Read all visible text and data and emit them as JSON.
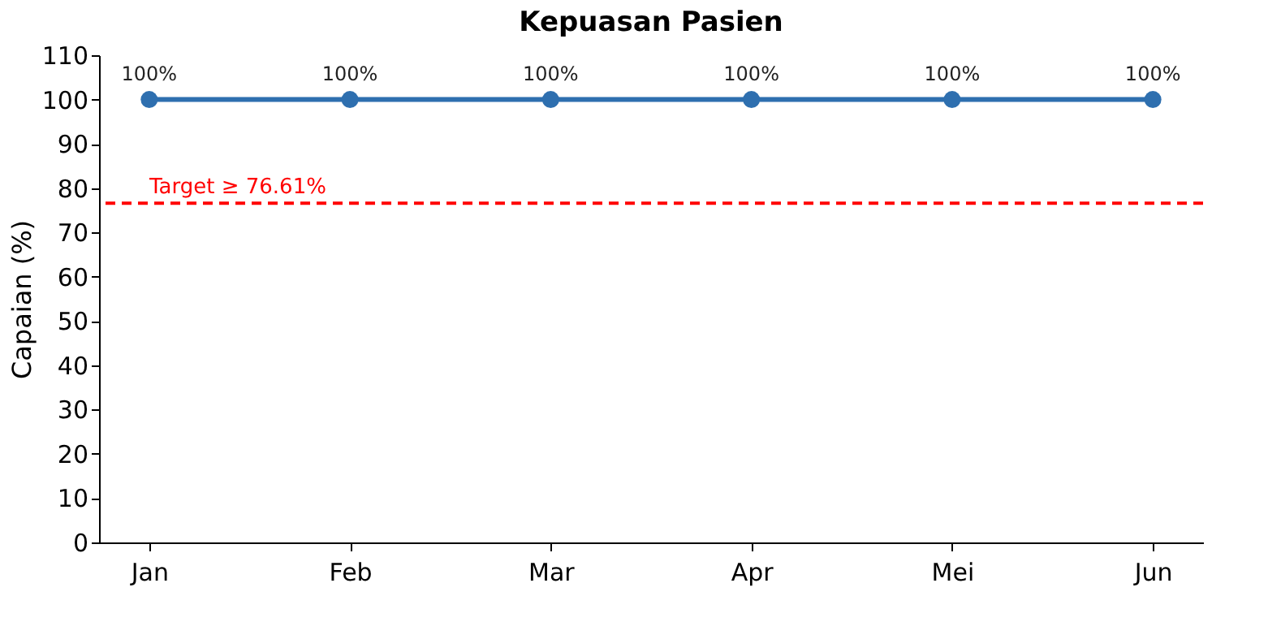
{
  "chart_data": {
    "type": "line",
    "title": "Kepuasan Pasien",
    "ylabel": "Capaian (%)",
    "categories": [
      "Jan",
      "Feb",
      "Mar",
      "Apr",
      "Mei",
      "Jun"
    ],
    "series": [
      {
        "color": "#2e6faf",
        "values": [
          100,
          100,
          100,
          100,
          100,
          100
        ]
      }
    ],
    "value_labels": [
      "100%",
      "100%",
      "100%",
      "100%",
      "100%",
      "100%"
    ],
    "ylim": [
      0,
      110
    ],
    "yticks": [
      0,
      10,
      20,
      30,
      40,
      50,
      60,
      70,
      80,
      90,
      100,
      110
    ],
    "ref_lines": [
      {
        "axis": "y",
        "value": 76.61,
        "label": "Target ≥ 76.61%",
        "color": "#ff0000",
        "line_style": "dashed"
      }
    ],
    "marker": "circle",
    "line_style": "solid",
    "grid": false
  }
}
